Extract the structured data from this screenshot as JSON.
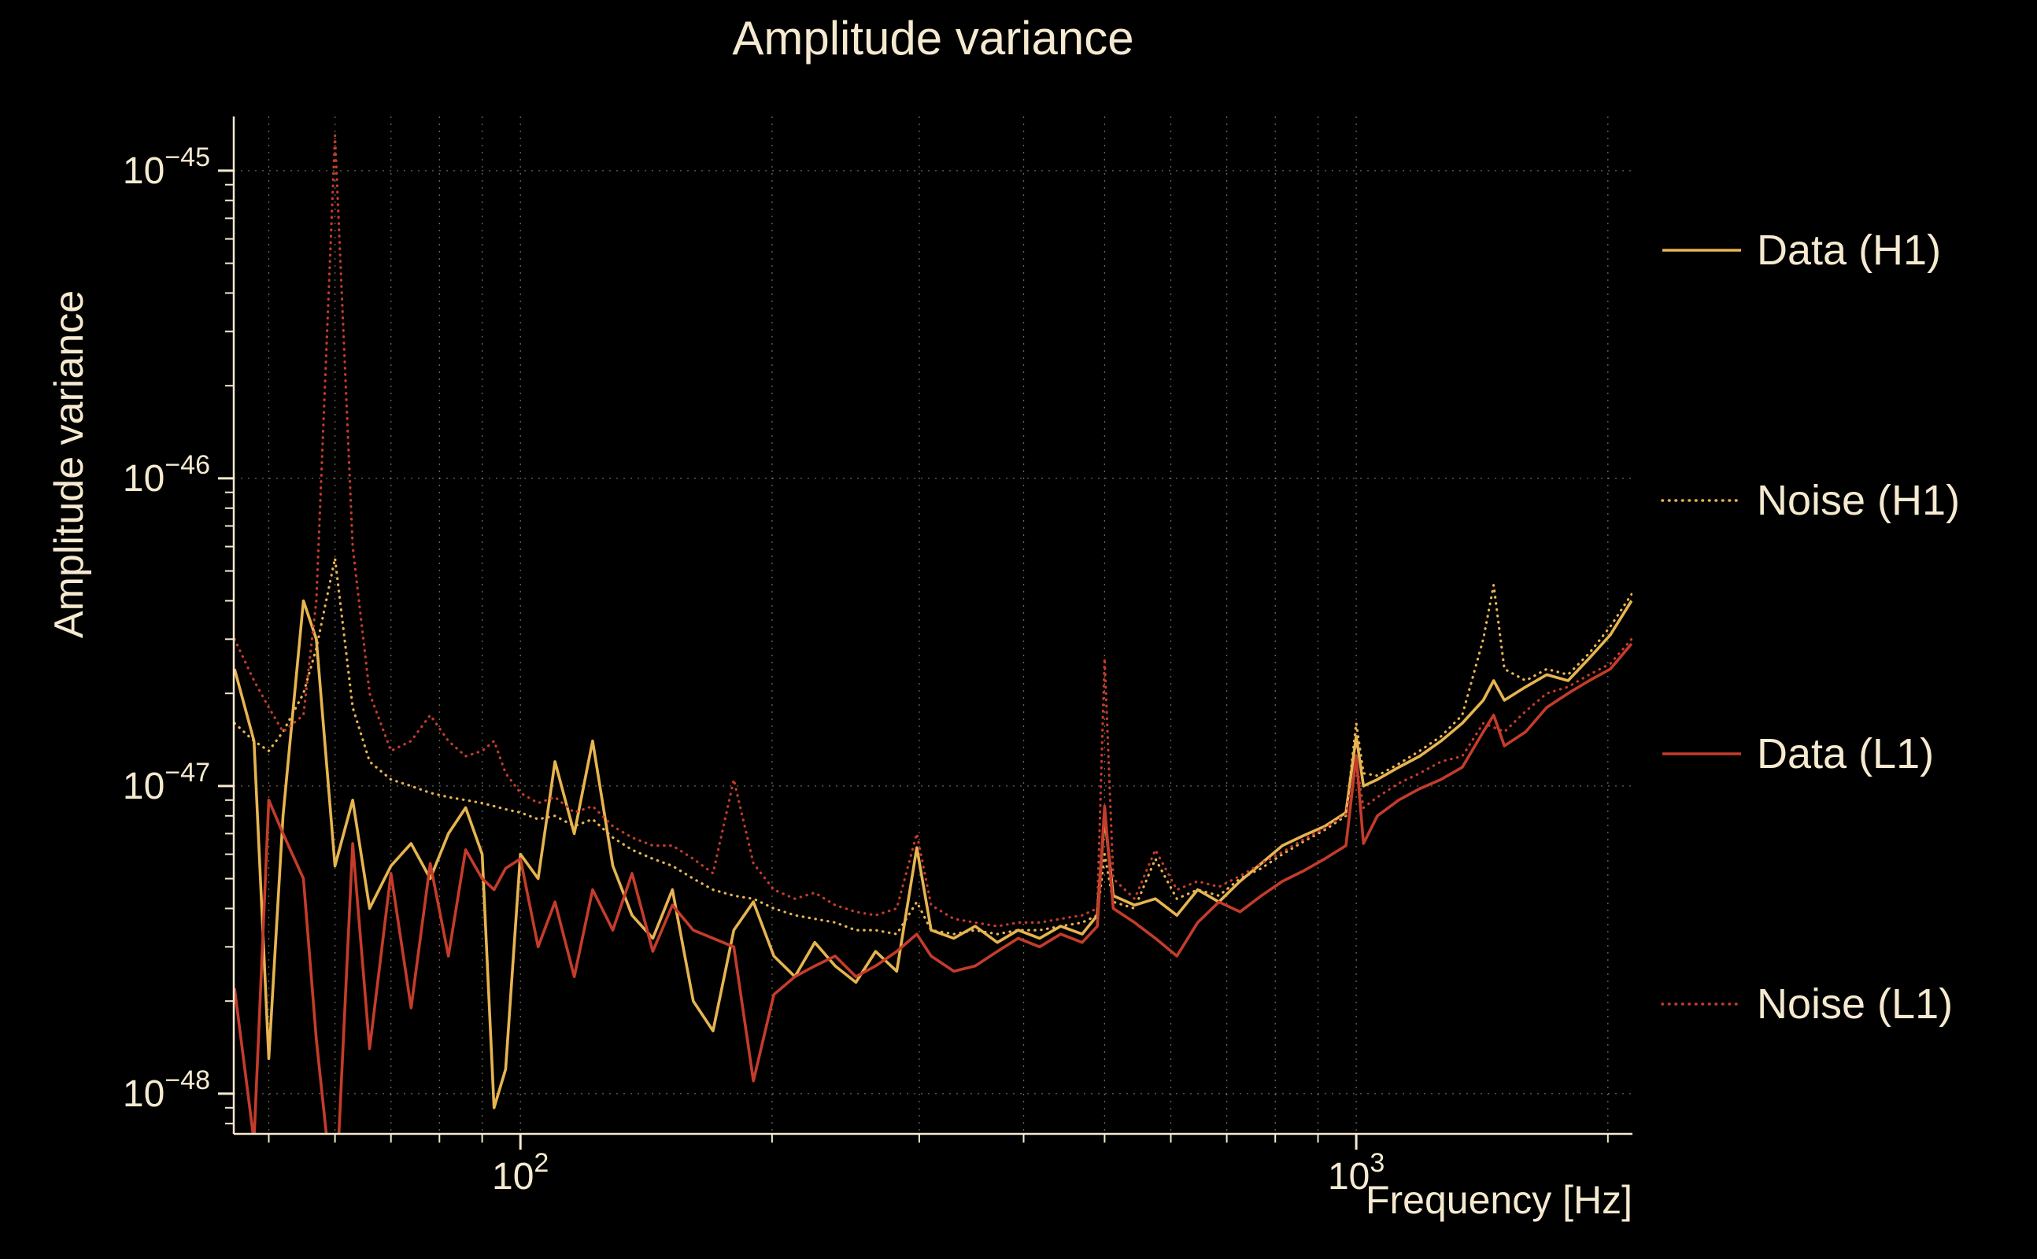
{
  "colors": {
    "background": "#000000",
    "text": "#f5ead0",
    "grid": "#efe3c4",
    "gold": "#e6b450",
    "red": "#c43c2b"
  },
  "chart_data": {
    "type": "line",
    "title": "Amplitude variance",
    "xlabel": "Frequency [Hz]",
    "ylabel": "Amplitude variance",
    "x_scale": "log",
    "y_scale": "log",
    "grid": true,
    "legend_position": "right-outside",
    "xlim": [
      45.4,
      2140
    ],
    "ylim": [
      7.4e-49,
      1.5e-45
    ],
    "x_ticks": [
      {
        "value": 100,
        "base": "10",
        "exp": "2"
      },
      {
        "value": 1000,
        "base": "10",
        "exp": "3"
      }
    ],
    "y_ticks": [
      {
        "value": 1e-45,
        "base": "10",
        "exp": "−45"
      },
      {
        "value": 1e-46,
        "base": "10",
        "exp": "−46"
      },
      {
        "value": 1e-47,
        "base": "10",
        "exp": "−47"
      },
      {
        "value": 1e-48,
        "base": "10",
        "exp": "−48"
      }
    ],
    "value_unit": 1e-48,
    "frequencies": [
      45.5,
      48,
      50,
      52,
      55,
      57,
      60,
      63,
      66,
      70,
      74,
      78,
      82,
      86,
      90,
      93,
      96,
      100,
      105,
      110,
      116,
      122,
      129,
      136,
      144,
      152,
      161,
      170,
      180,
      190,
      201,
      213,
      225,
      238,
      252,
      266,
      282,
      298,
      310,
      330,
      350,
      372,
      394,
      418,
      443,
      470,
      490,
      500,
      512,
      543,
      575,
      610,
      646,
      685,
      726,
      770,
      816,
      865,
      917,
      972,
      1000,
      1020,
      1060,
      1124,
      1191,
      1263,
      1339,
      1419,
      1460,
      1504,
      1595,
      1690,
      1792,
      1900,
      2014,
      2135
    ],
    "series": [
      {
        "name": "Data (H1)",
        "color": "#e6b450",
        "style": "solid",
        "values": [
          24,
          14,
          1.3,
          8,
          40,
          30,
          5.5,
          9,
          4,
          5.5,
          6.5,
          5,
          7,
          8.5,
          6,
          0.9,
          1.2,
          6,
          5,
          12,
          7,
          14,
          5.5,
          3.8,
          3.2,
          4.6,
          2.0,
          1.6,
          3.4,
          4.2,
          2.8,
          2.4,
          3.1,
          2.6,
          2.3,
          2.9,
          2.5,
          6.3,
          3.4,
          3.2,
          3.5,
          3.1,
          3.4,
          3.2,
          3.5,
          3.3,
          3.8,
          8.0,
          4.4,
          4.1,
          4.3,
          3.8,
          4.6,
          4.2,
          4.9,
          5.6,
          6.4,
          6.9,
          7.4,
          8.2,
          14.5,
          10,
          10.5,
          11.5,
          12.5,
          14,
          16,
          19,
          22,
          19,
          21,
          23,
          22,
          26,
          31,
          40
        ]
      },
      {
        "name": "Noise (H1)",
        "color": "#e6b450",
        "style": "dotted",
        "values": [
          16,
          14,
          13,
          15,
          20,
          28,
          55,
          18,
          12,
          10.5,
          10,
          9.5,
          9.2,
          9,
          8.8,
          8.6,
          8.4,
          8.2,
          7.8,
          8,
          7.4,
          7.8,
          6.8,
          6.2,
          5.8,
          5.5,
          5,
          4.6,
          4.4,
          4.3,
          4,
          3.8,
          3.7,
          3.6,
          3.4,
          3.4,
          3.3,
          4.2,
          3.4,
          3.3,
          3.4,
          3.3,
          3.4,
          3.4,
          3.5,
          3.6,
          3.8,
          6,
          4.2,
          4,
          5.8,
          4.3,
          4.6,
          4.4,
          5,
          5.4,
          6,
          6.6,
          7.2,
          8,
          16,
          11,
          10.8,
          11.8,
          13,
          14.5,
          17,
          30,
          45,
          24,
          22,
          24,
          23,
          27,
          33,
          42
        ]
      },
      {
        "name": "Data (L1)",
        "color": "#c43c2b",
        "style": "solid",
        "values": [
          2.2,
          0.7,
          9,
          7,
          5,
          1.5,
          0.4,
          6.5,
          1.4,
          5.2,
          1.9,
          5.6,
          2.8,
          6.2,
          5,
          4.6,
          5.4,
          5.8,
          3,
          4.2,
          2.4,
          4.6,
          3.4,
          5.2,
          2.9,
          4.1,
          3.4,
          3.2,
          3,
          1.1,
          2.1,
          2.4,
          2.6,
          2.8,
          2.4,
          2.6,
          2.9,
          3.3,
          2.8,
          2.5,
          2.6,
          2.9,
          3.2,
          3,
          3.3,
          3.1,
          3.5,
          8.6,
          4,
          3.6,
          3.2,
          2.8,
          3.6,
          4.2,
          3.9,
          4.4,
          4.9,
          5.3,
          5.8,
          6.4,
          12.5,
          6.5,
          8,
          9,
          9.8,
          10.5,
          11.5,
          15,
          17,
          13.5,
          15,
          18,
          20,
          22,
          24,
          29
        ]
      },
      {
        "name": "Noise (L1)",
        "color": "#c43c2b",
        "style": "dotted",
        "values": [
          30,
          22,
          18,
          15,
          17,
          40,
          1300,
          60,
          20,
          13,
          14,
          17,
          14,
          12.5,
          13,
          14,
          11,
          9.5,
          8.8,
          9.2,
          8.2,
          8.6,
          7.4,
          6.8,
          6.4,
          6.4,
          5.8,
          5.2,
          10.5,
          5.6,
          4.6,
          4.3,
          4.5,
          4.1,
          3.9,
          3.8,
          4,
          7,
          4.1,
          3.7,
          3.6,
          3.5,
          3.6,
          3.6,
          3.7,
          3.8,
          4,
          26,
          5,
          4.3,
          6.2,
          4.6,
          4.9,
          4.7,
          5.1,
          5.6,
          6.1,
          6.7,
          7.3,
          8.1,
          12,
          8.5,
          9.2,
          10.2,
          11,
          12,
          12.5,
          16,
          15.5,
          15,
          17.5,
          20,
          21,
          23,
          25,
          30
        ]
      }
    ]
  }
}
